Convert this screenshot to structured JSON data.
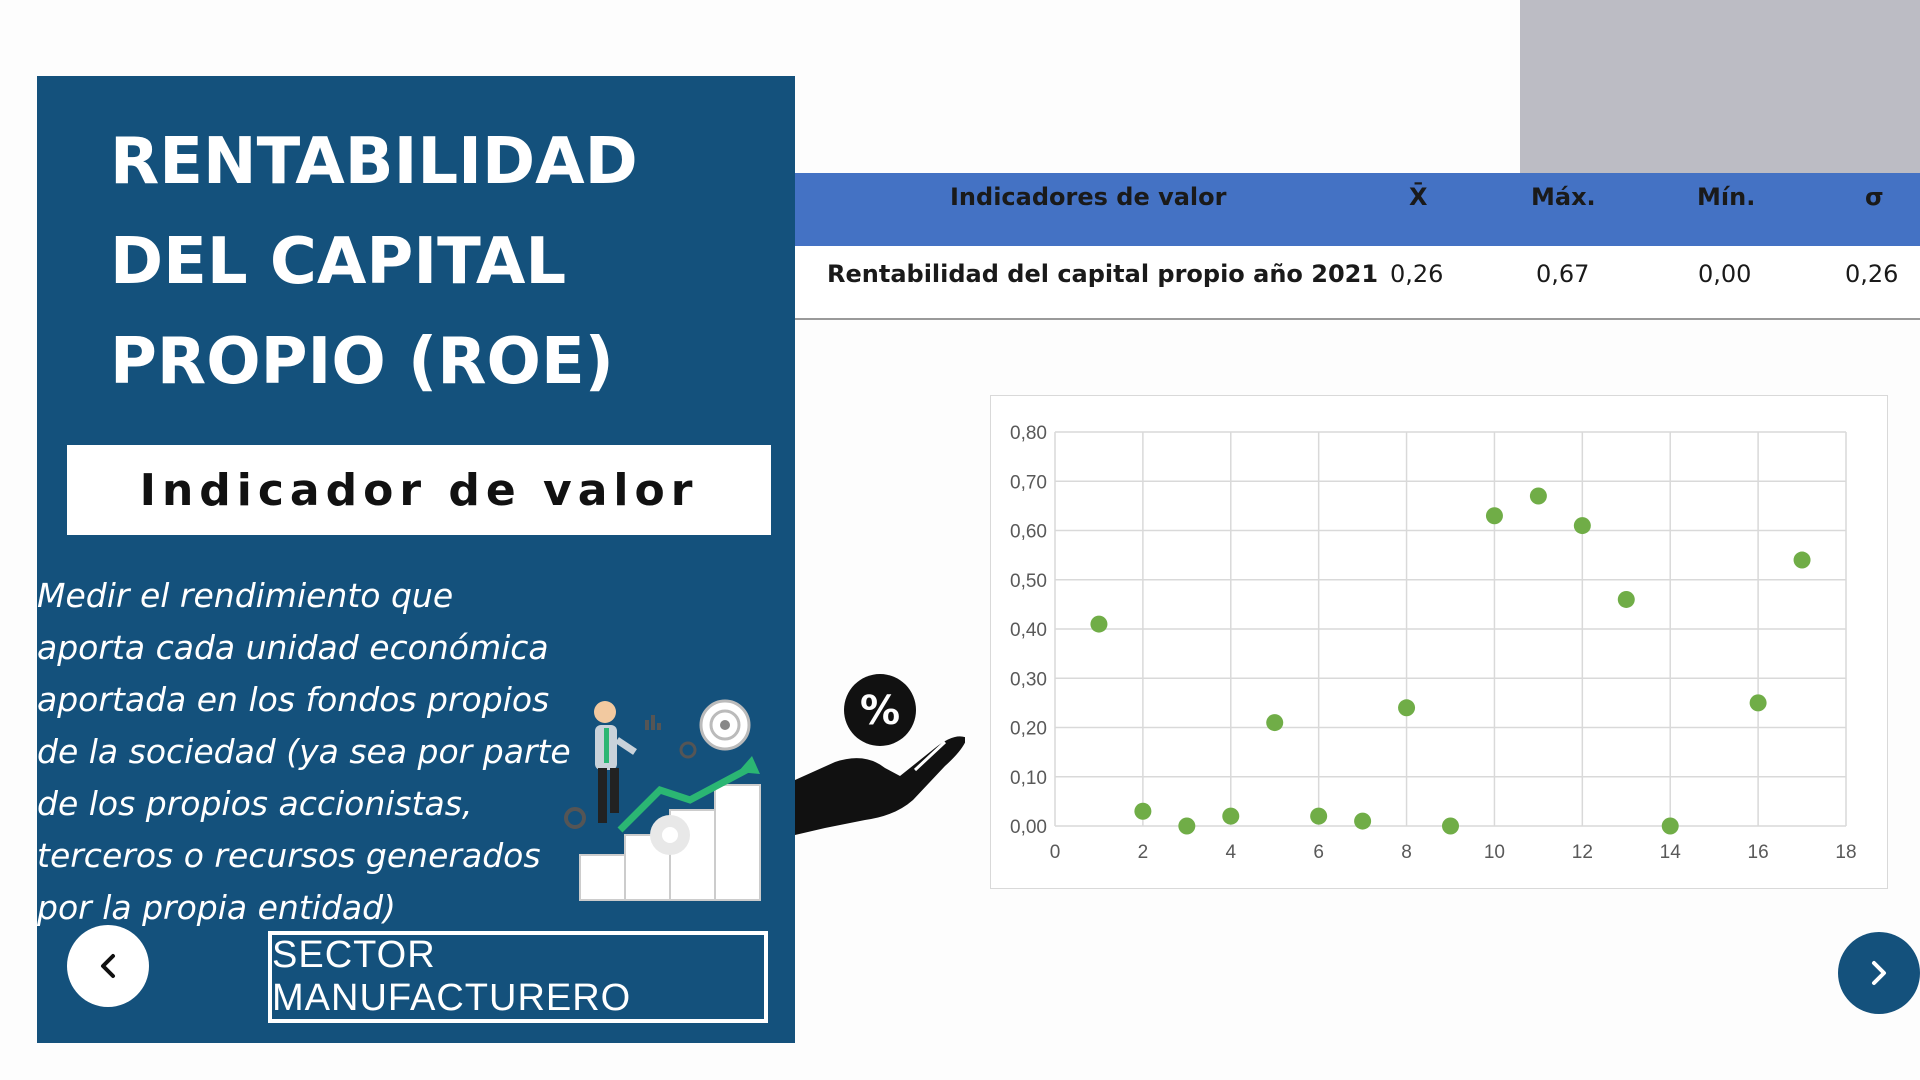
{
  "panel": {
    "title_lines": [
      "RENTABILIDAD",
      "DEL CAPITAL",
      "PROPIO (ROE)"
    ],
    "subtitle": "Indicador de valor",
    "description_lines": [
      "Medir el rendimiento que",
      "aporta cada unidad económica",
      "aportada en los fondos propios",
      "de la sociedad (ya sea por parte",
      "de los propios accionistas,",
      "terceros o recursos generados",
      "por la propia entidad)"
    ],
    "sector_label": "SECTOR MANUFACTURERO"
  },
  "nav": {
    "prev_icon": "chevron-left-icon",
    "next_icon": "chevron-right-icon"
  },
  "table": {
    "headers": [
      "Indicadores de valor",
      "X̄",
      "Máx.",
      "Mín.",
      "σ"
    ],
    "rows": [
      {
        "label": "Rentabilidad del capital propio año 2021",
        "mean": "0,26",
        "max": "0,67",
        "min": "0,00",
        "sd": "0,26"
      }
    ]
  },
  "colors": {
    "panel_blue": "#14517c",
    "table_header_blue": "#4472c4",
    "marker_green": "#70ad47",
    "gray_block": "#bcbcc4"
  },
  "chart_data": {
    "type": "scatter",
    "title": "",
    "xlabel": "",
    "ylabel": "",
    "xlim": [
      0,
      18
    ],
    "ylim": [
      0,
      0.8
    ],
    "x_ticks": [
      "0",
      "2",
      "4",
      "6",
      "8",
      "10",
      "12",
      "14",
      "16",
      "18"
    ],
    "y_ticks": [
      "0,00",
      "0,10",
      "0,20",
      "0,30",
      "0,40",
      "0,50",
      "0,60",
      "0,70",
      "0,80"
    ],
    "grid": true,
    "legend": "none",
    "series": [
      {
        "x": [
          1,
          2,
          3,
          4,
          5,
          6,
          7,
          8,
          9,
          10,
          11,
          12,
          13,
          14,
          16,
          17
        ],
        "y": [
          0.41,
          0.03,
          0.0,
          0.02,
          0.21,
          0.02,
          0.01,
          0.24,
          0.0,
          0.63,
          0.67,
          0.61,
          0.46,
          0.0,
          0.25,
          0.54
        ]
      }
    ]
  }
}
